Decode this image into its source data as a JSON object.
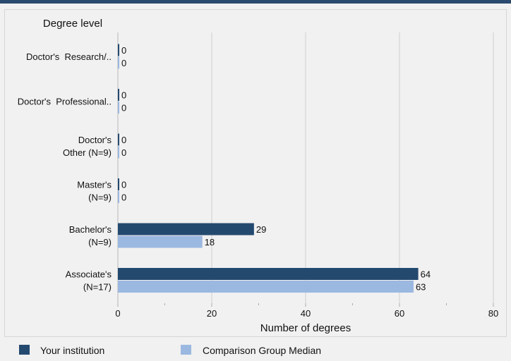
{
  "chart_data": {
    "type": "bar",
    "orientation": "horizontal",
    "title": "Degree level",
    "xlabel": "Number of degrees",
    "xlim": [
      0,
      80
    ],
    "xticks": [
      0,
      20,
      40,
      60,
      80
    ],
    "grid": true,
    "legend_position": "bottom",
    "categories": [
      [
        "Doctor's  Research/.."
      ],
      [
        "Doctor's  Professional.."
      ],
      [
        "Doctor's",
        "Other (N=9)"
      ],
      [
        "Master's",
        "(N=9)"
      ],
      [
        "Bachelor's",
        "(N=9)"
      ],
      [
        "Associate's",
        "(N=17)"
      ]
    ],
    "series": [
      {
        "name": "Your institution",
        "color": "#24496f",
        "values": [
          0,
          0,
          0,
          0,
          29,
          64
        ]
      },
      {
        "name": "Comparison Group Median",
        "color": "#9bb8e0",
        "values": [
          0,
          0,
          0,
          0,
          18,
          63
        ]
      }
    ]
  }
}
